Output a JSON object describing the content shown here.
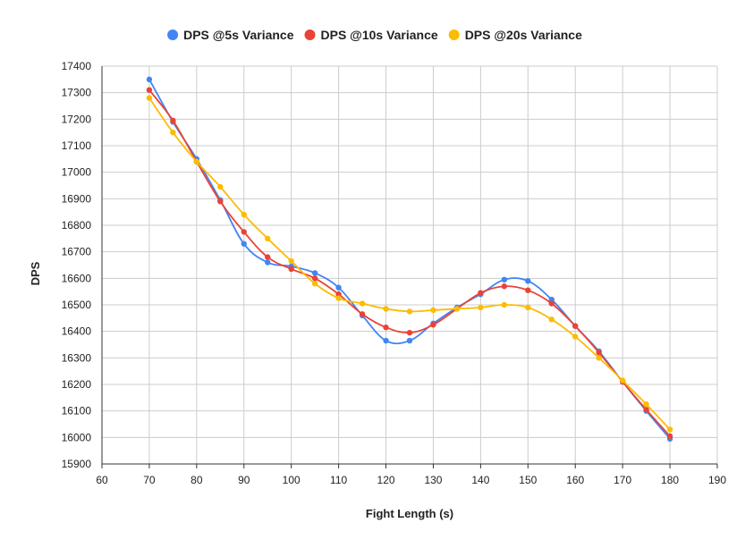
{
  "chart_data": {
    "type": "line",
    "title": "",
    "xlabel": "Fight Length (s)",
    "ylabel": "DPS",
    "xlim": [
      60,
      190
    ],
    "ylim": [
      15900,
      17400
    ],
    "xticks": [
      60,
      70,
      80,
      90,
      100,
      110,
      120,
      130,
      140,
      150,
      160,
      170,
      180,
      190
    ],
    "yticks": [
      15900,
      16000,
      16100,
      16200,
      16300,
      16400,
      16500,
      16600,
      16700,
      16800,
      16900,
      17000,
      17100,
      17200,
      17300,
      17400
    ],
    "grid": true,
    "legend_position": "top",
    "x": [
      70,
      75,
      80,
      85,
      90,
      95,
      100,
      105,
      110,
      115,
      120,
      125,
      130,
      135,
      140,
      145,
      150,
      155,
      160,
      165,
      170,
      175,
      180
    ],
    "series": [
      {
        "name": "DPS @5s Variance",
        "color": "#4285F4",
        "values": [
          17350,
          17190,
          17050,
          16895,
          16730,
          16660,
          16645,
          16620,
          16565,
          16460,
          16365,
          16365,
          16430,
          16490,
          16540,
          16595,
          16590,
          16520,
          16420,
          16325,
          16210,
          16100,
          15995
        ]
      },
      {
        "name": "DPS @10s Variance",
        "color": "#EA4335",
        "values": [
          17310,
          17195,
          17040,
          16890,
          16775,
          16680,
          16635,
          16600,
          16540,
          16465,
          16415,
          16395,
          16425,
          16485,
          16545,
          16570,
          16555,
          16505,
          16420,
          16320,
          16210,
          16105,
          16005
        ]
      },
      {
        "name": "DPS @20s Variance",
        "color": "#FBBC04",
        "values": [
          17280,
          17150,
          17040,
          16945,
          16840,
          16750,
          16665,
          16580,
          16525,
          16505,
          16485,
          16475,
          16480,
          16485,
          16490,
          16500,
          16490,
          16445,
          16380,
          16300,
          16215,
          16125,
          16030
        ]
      }
    ]
  }
}
